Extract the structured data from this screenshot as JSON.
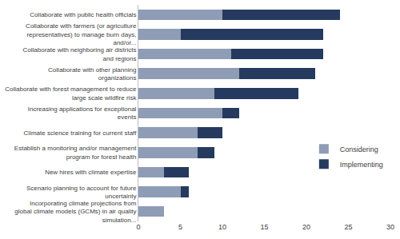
{
  "chart_data": {
    "type": "bar",
    "orientation": "horizontal",
    "stacked": true,
    "categories": [
      "Collaborate with public health officials",
      "Collaborate with farmers (or agriculture representatives) to manage burn days, and/or...",
      "Collaborate with neighboring air districts and regions",
      "Collaborate with other planning organizations",
      "Collaborate with forest management to reduce large scale wildfire risk",
      "Increasing applications for exceptional events",
      "Climate science training for current staff",
      "Establish a monitoring and/or management program for forest health",
      "New hires with climate expertise",
      "Scenario planning to account for future uncertainty",
      "Incorporating climate projections from global climate models (GCMs) in air quality simulation..."
    ],
    "series": [
      {
        "name": "Considering",
        "color": "#8e9cb6",
        "values": [
          10,
          5,
          11,
          12,
          9,
          10,
          7,
          7,
          3,
          5,
          3
        ]
      },
      {
        "name": "Implementing",
        "color": "#253a5e",
        "values": [
          14,
          17,
          11,
          9,
          10,
          2,
          3,
          2,
          3,
          1,
          0
        ]
      }
    ],
    "xlim": [
      0,
      30
    ],
    "xticks": [
      0,
      5,
      10,
      15,
      20,
      25,
      30
    ],
    "grid": false,
    "legend": "right"
  }
}
